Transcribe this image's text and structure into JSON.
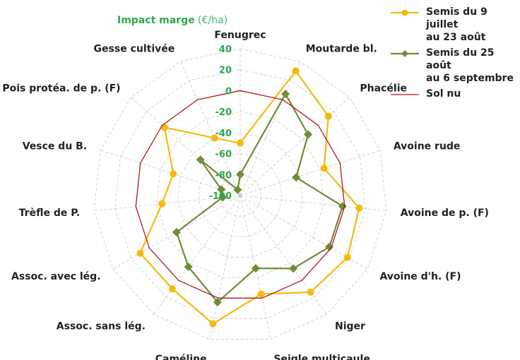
{
  "chart_data": {
    "type": "radar",
    "title": "Impact marge",
    "unit": "(€/ha)",
    "categories": [
      "Fenugrec",
      "Moutarde bl.",
      "Phacélie",
      "Avoine rude",
      "Avoine de p. (F)",
      "Avoine d'h. (F)",
      "Niger",
      "Seigle multicaule",
      "Caméline",
      "Assoc. sans lég.",
      "Assoc. avec lég.",
      "Trèfle de P.",
      "Vesce du B.",
      "Pois protéa. de p. (F)",
      "Gesse cultivée"
    ],
    "rlim": [
      -100,
      40
    ],
    "ticks": [
      "40",
      "20",
      "0",
      "-20",
      "-40",
      "-60",
      "-80",
      "-100"
    ],
    "tick_values": [
      40,
      20,
      0,
      -20,
      -40,
      -60,
      -80,
      -100
    ],
    "grid": true,
    "legend_position": "top-right",
    "series": [
      {
        "name": "Semis du 9 juillet au 23 août",
        "name_lines": [
          "Semis du 9 juillet",
          "au 23 août"
        ],
        "color": "#f5b90f",
        "marker": "circle",
        "values": [
          -50,
          30,
          13,
          -16,
          14,
          18,
          14,
          -4,
          25,
          10,
          10,
          -25,
          -33,
          -3,
          -40
        ]
      },
      {
        "name": "Semis du 25 août au 6 septembre",
        "name_lines": [
          "Semis du 25 août",
          "au 6 septembre"
        ],
        "color": "#6e8c35",
        "marker": "diamond",
        "values": [
          -80,
          6,
          -13,
          -44,
          -2,
          -2,
          -14,
          -29,
          4,
          -16,
          -30,
          -83,
          -81,
          -49,
          -94
        ]
      },
      {
        "name": "Sol nu",
        "name_lines": [
          "Sol nu"
        ],
        "color": "#b0161e",
        "marker": "none",
        "values": [
          0,
          0,
          0,
          0,
          0,
          0,
          0,
          0,
          0,
          0,
          0,
          0,
          0,
          0,
          0
        ]
      }
    ]
  }
}
